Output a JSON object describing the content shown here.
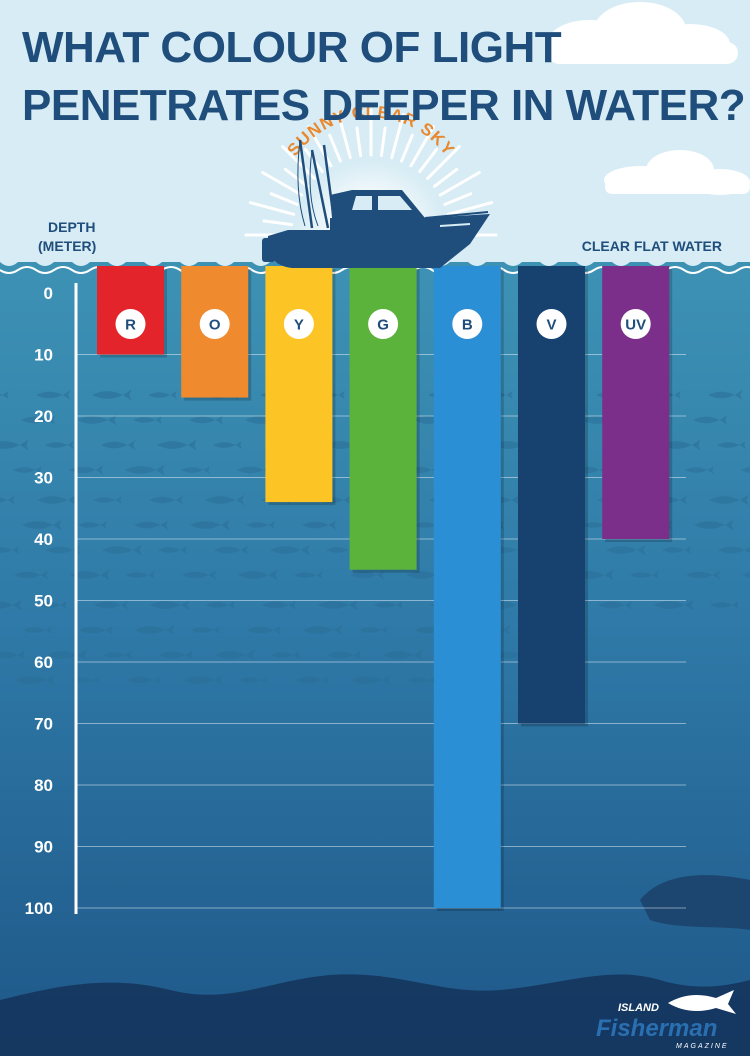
{
  "header": {
    "title_line1": "WHAT COLOUR OF LIGHT",
    "title_line2": "PENETRATES DEEPER IN WATER?",
    "sky_label": "SUNNY CLEAR SKY",
    "depth_label_line1": "DEPTH",
    "depth_label_line2": "(METER)",
    "water_label": "CLEAR FLAT WATER"
  },
  "logo": {
    "top": "ISLAND",
    "main": "Fisherman",
    "sub": "MAGAZINE"
  },
  "colors": {
    "title": "#1f4e7c",
    "sky_text": "#e8892f",
    "water_top": "#3d92b4",
    "water_bottom": "#1e5788",
    "badge_text": "#1f4e7c"
  },
  "chart_data": {
    "type": "bar",
    "orientation": "vertical-downward",
    "title": "WHAT COLOUR OF LIGHT PENETRATES DEEPER IN WATER?",
    "ylabel": "DEPTH (METER)",
    "xlabel": "",
    "ylim": [
      0,
      100
    ],
    "yticks": [
      0,
      10,
      20,
      30,
      40,
      50,
      60,
      70,
      80,
      90,
      100
    ],
    "grid": true,
    "categories": [
      "R",
      "O",
      "Y",
      "G",
      "B",
      "V",
      "UV"
    ],
    "values": [
      10,
      17,
      34,
      45,
      100,
      70,
      40
    ],
    "bar_colors": [
      "#e3252b",
      "#ef8a2e",
      "#fcc425",
      "#5cb33c",
      "#2b8fd6",
      "#17416f",
      "#7b2f8a"
    ]
  }
}
